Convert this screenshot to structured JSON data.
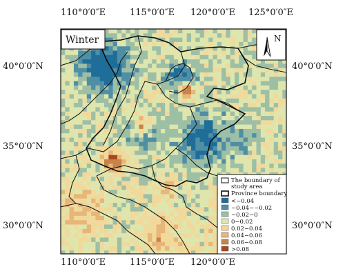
{
  "season_label": "Winter",
  "north_label": "N",
  "longitude_labels": [
    "110°0′0″E",
    "115°0′0″E",
    "120°0′0″E",
    "125°0′0″E"
  ],
  "latitude_labels": [
    "40°0′0″N",
    "35°0′0″N",
    "30°0′0″N"
  ],
  "legend": {
    "boundary_study_area": "The boundary of study area",
    "boundary_study_area_line1": "The boundary of",
    "boundary_study_area_line2": "study area",
    "province_boundary": "Province boundary",
    "classes": [
      {
        "label": "<−0.04",
        "color": "#1f6e9a"
      },
      {
        "label": "−0.04−−0.02",
        "color": "#4f8fa6"
      },
      {
        "label": "−0.02−0",
        "color": "#9dbfa5"
      },
      {
        "label": "0−0.02",
        "color": "#dfe6ad"
      },
      {
        "label": "0.02−0.04",
        "color": "#f1d99c"
      },
      {
        "label": "0.04−0.06",
        "color": "#e7b678"
      },
      {
        "label": "0.06−0.08",
        "color": "#c98348"
      },
      {
        "label": ">0.08",
        "color": "#a8481f"
      }
    ]
  }
}
